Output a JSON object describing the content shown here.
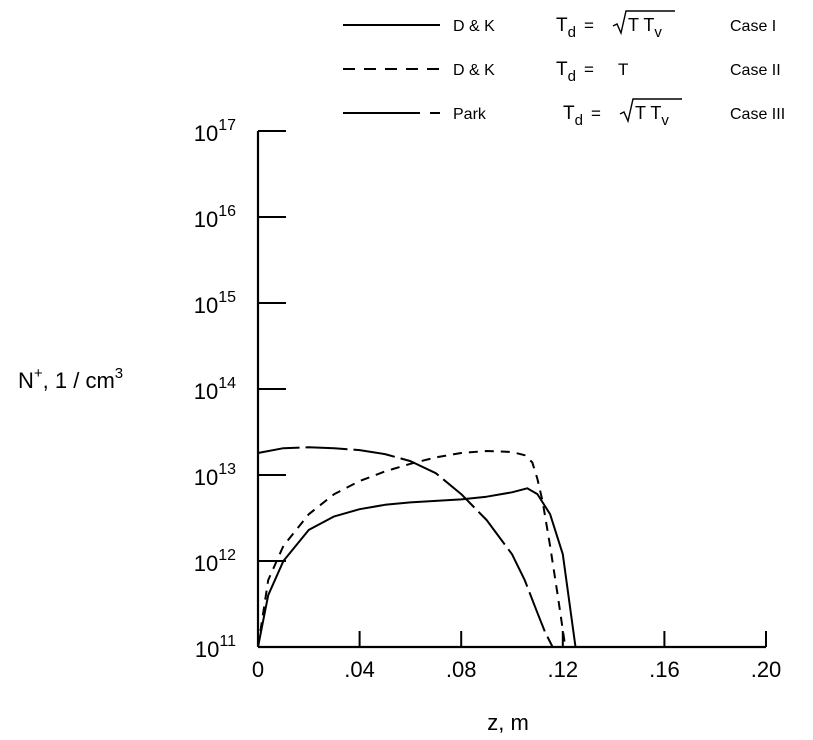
{
  "chart_data": {
    "type": "line",
    "title": "",
    "xlabel": "z, m",
    "ylabel_main": "N",
    "ylabel_sup": "+",
    "ylabel_rest": ",  1 / cm",
    "ylabel_unit_sup": "3",
    "yscale": "log",
    "xlim": [
      0,
      0.2
    ],
    "ylim_exp": [
      11,
      17
    ],
    "xticks": [
      0,
      0.04,
      0.08,
      0.12,
      0.16,
      0.2
    ],
    "xtick_labels": [
      "0",
      ".04",
      ".08",
      ".12",
      ".16",
      ".20"
    ],
    "ytick_exps": [
      11,
      12,
      13,
      14,
      15,
      16,
      17
    ],
    "ytick_base": "10",
    "ytick_exp_labels": [
      "11",
      "12",
      "13",
      "14",
      "15",
      "16",
      "17"
    ],
    "grid": false,
    "legend_position": "top-right",
    "series": [
      {
        "name": "D & K",
        "formula_main": "T",
        "formula_sub": "d",
        "formula_eq": "=",
        "formula_rhs": "T T",
        "formula_rhs_sub": "v",
        "case": "Case  I",
        "style": "solid",
        "x": [
          0.0,
          0.004,
          0.01,
          0.02,
          0.03,
          0.04,
          0.05,
          0.06,
          0.07,
          0.08,
          0.09,
          0.1,
          0.106,
          0.11,
          0.115,
          0.12,
          0.125
        ],
        "y": [
          100000000000.0,
          400000000000.0,
          1000000000000.0,
          2300000000000.0,
          3300000000000.0,
          4000000000000.0,
          4500000000000.0,
          4800000000000.0,
          5000000000000.0,
          5200000000000.0,
          5600000000000.0,
          6300000000000.0,
          7000000000000.0,
          6000000000000.0,
          3500000000000.0,
          1200000000000.0,
          100000000000.0
        ]
      },
      {
        "name": "D & K",
        "formula_main": "T",
        "formula_sub": "d",
        "formula_eq": "=",
        "formula_rhs": "T",
        "case": "Case  II",
        "style": "dashed",
        "x": [
          0.0,
          0.004,
          0.01,
          0.02,
          0.03,
          0.04,
          0.05,
          0.06,
          0.07,
          0.08,
          0.09,
          0.1,
          0.105,
          0.108,
          0.11,
          0.112,
          0.115,
          0.118,
          0.121
        ],
        "y": [
          100000000000.0,
          600000000000.0,
          1500000000000.0,
          3500000000000.0,
          6000000000000.0,
          8500000000000.0,
          11000000000000.0,
          13500000000000.0,
          16000000000000.0,
          18000000000000.0,
          19000000000000.0,
          18500000000000.0,
          17000000000000.0,
          14000000000000.0,
          9000000000000.0,
          5000000000000.0,
          1500000000000.0,
          400000000000.0,
          100000000000.0
        ]
      },
      {
        "name": "Park",
        "formula_main": "T",
        "formula_sub": "d",
        "formula_eq": "=",
        "formula_rhs": "T T",
        "formula_rhs_sub": "v",
        "case": "Case  III",
        "style": "long-dash",
        "x": [
          0.0,
          0.01,
          0.02,
          0.03,
          0.04,
          0.05,
          0.06,
          0.07,
          0.08,
          0.09,
          0.1,
          0.105,
          0.11,
          0.113,
          0.116
        ],
        "y": [
          18000000000000.0,
          20500000000000.0,
          21000000000000.0,
          20500000000000.0,
          19500000000000.0,
          17500000000000.0,
          14500000000000.0,
          10500000000000.0,
          6000000000000.0,
          3000000000000.0,
          1200000000000.0,
          600000000000.0,
          250000000000.0,
          150000000000.0,
          100000000000.0
        ]
      }
    ]
  }
}
